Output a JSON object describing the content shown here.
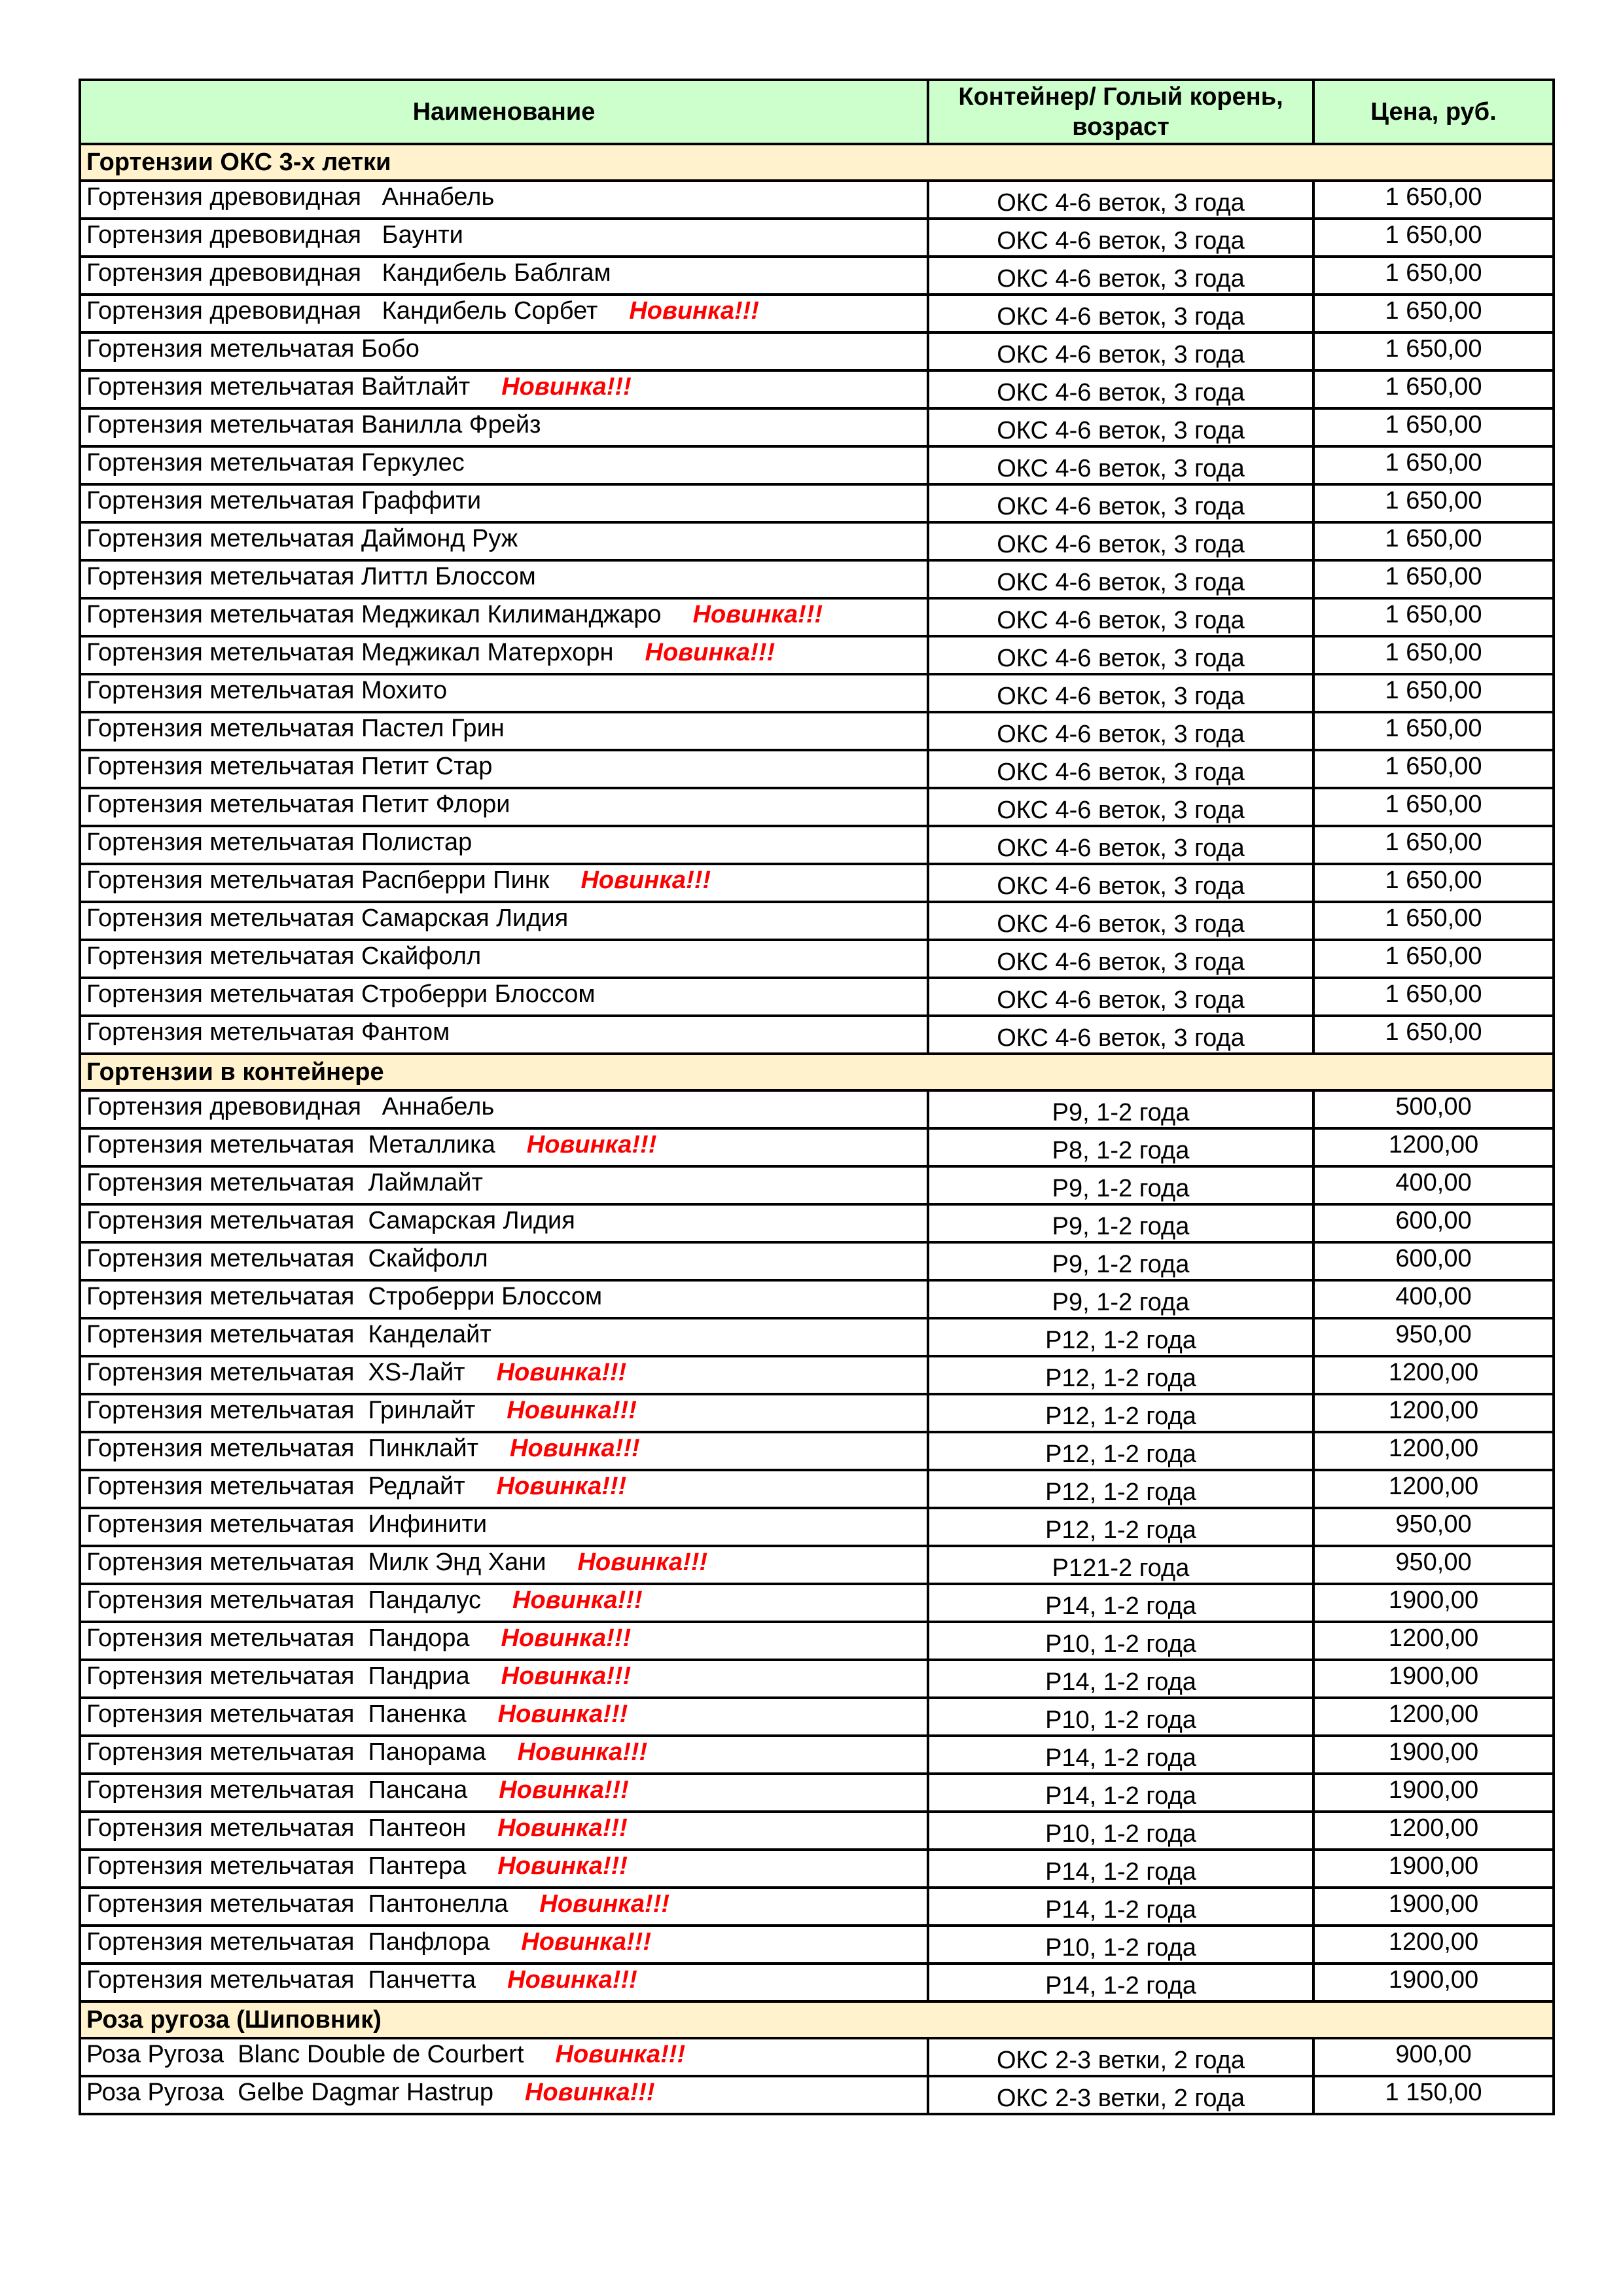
{
  "header": {
    "name": "Наименование",
    "container": "Контейнер/ Голый корень, возраст",
    "price": "Цена, руб."
  },
  "new_label": "Новинка!!!",
  "colors": {
    "header_bg": "#ccffcc",
    "section_bg": "#fff2cc",
    "new_text": "#ff0000"
  },
  "sections": [
    {
      "title": "Гортензии ОКС 3-х летки",
      "rows": [
        {
          "name": "Гортензия древовидная   Аннабель",
          "container": "ОКС 4-6 веток, 3 года",
          "price": "1 650,00",
          "new": false
        },
        {
          "name": "Гортензия древовидная   Баунти",
          "container": "ОКС 4-6 веток, 3 года",
          "price": "1 650,00",
          "new": false
        },
        {
          "name": "Гортензия древовидная   Кандибель Баблгам",
          "container": "ОКС 4-6 веток, 3 года",
          "price": "1 650,00",
          "new": false
        },
        {
          "name": "Гортензия древовидная   Кандибель Сорбет",
          "container": "ОКС 4-6 веток, 3 года",
          "price": "1 650,00",
          "new": true
        },
        {
          "name": "Гортензия метельчатая Бобо",
          "container": "ОКС 4-6 веток, 3 года",
          "price": "1 650,00",
          "new": false
        },
        {
          "name": "Гортензия метельчатая Вайтлайт",
          "container": "ОКС 4-6 веток, 3 года",
          "price": "1 650,00",
          "new": true
        },
        {
          "name": "Гортензия метельчатая Ванилла Фрейз",
          "container": "ОКС 4-6 веток, 3 года",
          "price": "1 650,00",
          "new": false
        },
        {
          "name": "Гортензия метельчатая Геркулес",
          "container": "ОКС 4-6 веток, 3 года",
          "price": "1 650,00",
          "new": false
        },
        {
          "name": "Гортензия метельчатая Граффити",
          "container": "ОКС 4-6 веток, 3 года",
          "price": "1 650,00",
          "new": false
        },
        {
          "name": "Гортензия метельчатая Даймонд Руж",
          "container": "ОКС 4-6 веток, 3 года",
          "price": "1 650,00",
          "new": false
        },
        {
          "name": "Гортензия метельчатая Литтл Блоссом",
          "container": "ОКС 4-6 веток, 3 года",
          "price": "1 650,00",
          "new": false
        },
        {
          "name": "Гортензия метельчатая Меджикал Килиманджаро",
          "container": "ОКС 4-6 веток, 3 года",
          "price": "1 650,00",
          "new": true
        },
        {
          "name": "Гортензия метельчатая Меджикал Матерхорн",
          "container": "ОКС 4-6 веток, 3 года",
          "price": "1 650,00",
          "new": true
        },
        {
          "name": "Гортензия метельчатая Мохито",
          "container": "ОКС 4-6 веток, 3 года",
          "price": "1 650,00",
          "new": false
        },
        {
          "name": "Гортензия метельчатая Пастел Грин",
          "container": "ОКС 4-6 веток, 3 года",
          "price": "1 650,00",
          "new": false
        },
        {
          "name": "Гортензия метельчатая Петит Стар",
          "container": "ОКС 4-6 веток, 3 года",
          "price": "1 650,00",
          "new": false
        },
        {
          "name": "Гортензия метельчатая Петит Флори",
          "container": "ОКС 4-6 веток, 3 года",
          "price": "1 650,00",
          "new": false
        },
        {
          "name": "Гортензия метельчатая Полистар",
          "container": "ОКС 4-6 веток, 3 года",
          "price": "1 650,00",
          "new": false
        },
        {
          "name": "Гортензия метельчатая Распберри Пинк",
          "container": "ОКС 4-6 веток, 3 года",
          "price": "1 650,00",
          "new": true
        },
        {
          "name": "Гортензия метельчатая Самарская Лидия",
          "container": "ОКС 4-6 веток, 3 года",
          "price": "1 650,00",
          "new": false
        },
        {
          "name": "Гортензия метельчатая Скайфолл",
          "container": "ОКС 4-6 веток, 3 года",
          "price": "1 650,00",
          "new": false
        },
        {
          "name": "Гортензия метельчатая Строберри Блоссом",
          "container": "ОКС 4-6 веток, 3 года",
          "price": "1 650,00",
          "new": false
        },
        {
          "name": "Гортензия метельчатая Фантом",
          "container": "ОКС 4-6 веток, 3 года",
          "price": "1 650,00",
          "new": false
        }
      ]
    },
    {
      "title": "Гортензии в контейнере",
      "rows": [
        {
          "name": "Гортензия древовидная   Аннабель",
          "container": "P9, 1-2 года",
          "price": "500,00",
          "new": false
        },
        {
          "name": "Гортензия метельчатая  Металлика",
          "container": "P8, 1-2 года",
          "price": "1200,00",
          "new": true
        },
        {
          "name": "Гортензия метельчатая  Лаймлайт",
          "container": "P9, 1-2 года",
          "price": "400,00",
          "new": false
        },
        {
          "name": "Гортензия метельчатая  Самарская Лидия",
          "container": "P9, 1-2 года",
          "price": "600,00",
          "new": false
        },
        {
          "name": "Гортензия метельчатая  Скайфолл",
          "container": "P9, 1-2 года",
          "price": "600,00",
          "new": false
        },
        {
          "name": "Гортензия метельчатая  Строберри Блоссом",
          "container": "P9, 1-2 года",
          "price": "400,00",
          "new": false
        },
        {
          "name": "Гортензия метельчатая  Канделайт",
          "container": "P12, 1-2 года",
          "price": "950,00",
          "new": false
        },
        {
          "name": "Гортензия метельчатая  XS-Лайт",
          "container": "P12, 1-2 года",
          "price": "1200,00",
          "new": true
        },
        {
          "name": "Гортензия метельчатая  Гринлайт",
          "container": "P12, 1-2 года",
          "price": "1200,00",
          "new": true
        },
        {
          "name": "Гортензия метельчатая  Пинклайт",
          "container": "P12, 1-2 года",
          "price": "1200,00",
          "new": true
        },
        {
          "name": "Гортензия метельчатая  Редлайт",
          "container": "P12, 1-2 года",
          "price": "1200,00",
          "new": true
        },
        {
          "name": "Гортензия метельчатая  Инфинити",
          "container": "P12, 1-2 года",
          "price": "950,00",
          "new": false
        },
        {
          "name": "Гортензия метельчатая  Милк Энд Хани",
          "container": "P121-2 года",
          "price": "950,00",
          "new": true
        },
        {
          "name": "Гортензия метельчатая  Пандалус",
          "container": "P14, 1-2 года",
          "price": "1900,00",
          "new": true
        },
        {
          "name": "Гортензия метельчатая  Пандора",
          "container": "P10, 1-2 года",
          "price": "1200,00",
          "new": true
        },
        {
          "name": "Гортензия метельчатая  Пандриа",
          "container": "P14, 1-2 года",
          "price": "1900,00",
          "new": true
        },
        {
          "name": "Гортензия метельчатая  Паненка",
          "container": "P10, 1-2 года",
          "price": "1200,00",
          "new": true
        },
        {
          "name": "Гортензия метельчатая  Панорама",
          "container": "P14, 1-2 года",
          "price": "1900,00",
          "new": true
        },
        {
          "name": "Гортензия метельчатая  Пансана",
          "container": "P14, 1-2 года",
          "price": "1900,00",
          "new": true
        },
        {
          "name": "Гортензия метельчатая  Пантеон",
          "container": "P10, 1-2 года",
          "price": "1200,00",
          "new": true
        },
        {
          "name": "Гортензия метельчатая  Пантера",
          "container": "P14, 1-2 года",
          "price": "1900,00",
          "new": true
        },
        {
          "name": "Гортензия метельчатая  Пантонелла",
          "container": "P14, 1-2 года",
          "price": "1900,00",
          "new": true
        },
        {
          "name": "Гортензия метельчатая  Панфлора",
          "container": "P10, 1-2 года",
          "price": "1200,00",
          "new": true
        },
        {
          "name": "Гортензия метельчатая  Панчетта",
          "container": "P14, 1-2 года",
          "price": "1900,00",
          "new": true
        }
      ]
    },
    {
      "title": "Роза ругоза (Шиповник)",
      "rows": [
        {
          "name": "Роза Ругоза  Blanc Double de Courbert",
          "container": "ОКС 2-3 ветки, 2 года",
          "price": "900,00",
          "new": true
        },
        {
          "name": "Роза Ругоза  Gelbe Dagmar Hastrup",
          "container": "ОКС 2-3 ветки, 2 года",
          "price": "1 150,00",
          "new": true
        }
      ]
    }
  ]
}
